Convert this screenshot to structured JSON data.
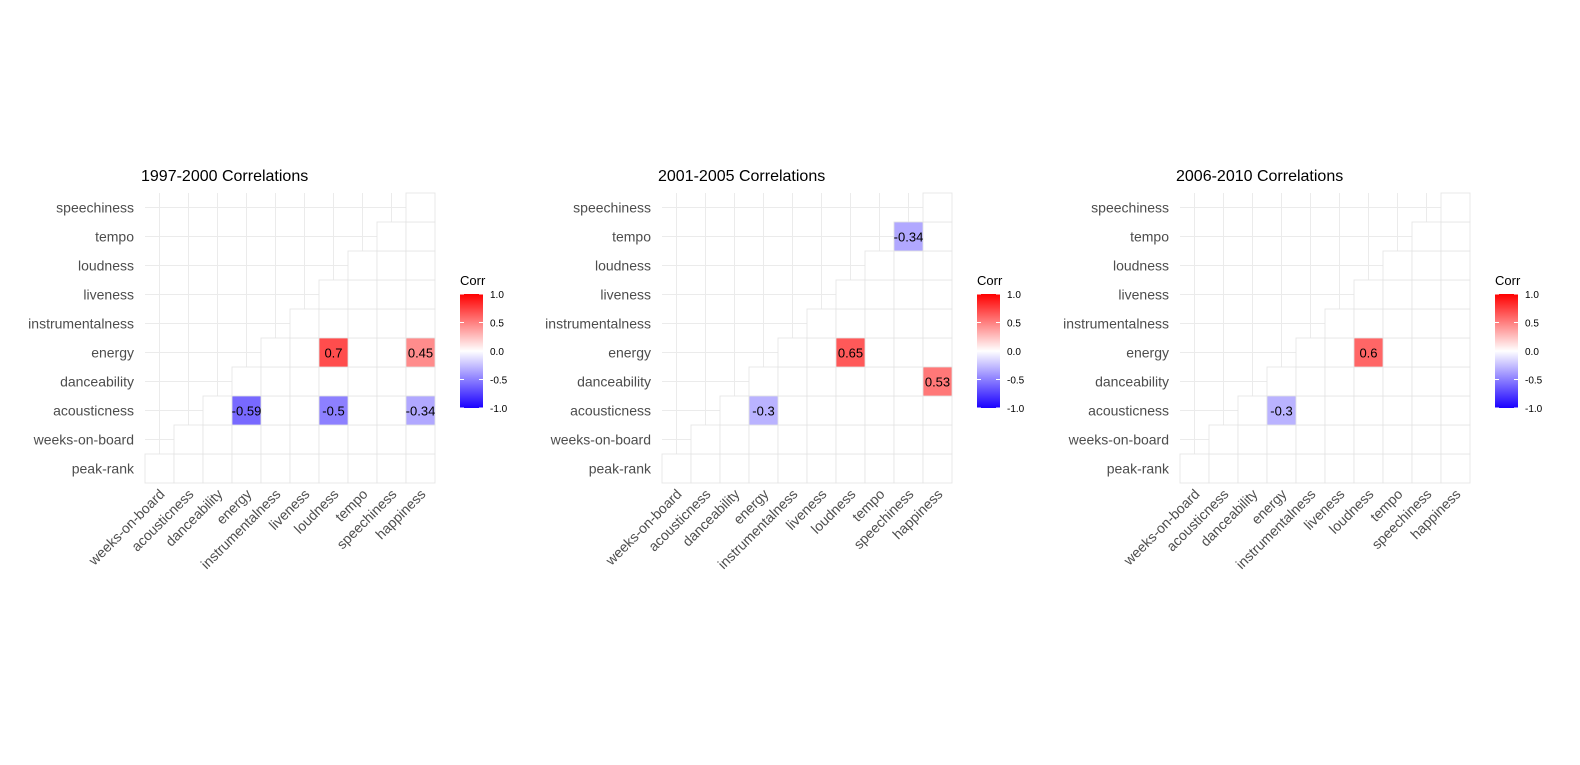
{
  "chart_data": [
    {
      "type": "heatmap",
      "title": "1997-2000 Correlations",
      "x_categories": [
        "weeks-on-board",
        "acousticness",
        "danceability",
        "energy",
        "instrumentalness",
        "liveness",
        "loudness",
        "tempo",
        "speechiness",
        "happiness"
      ],
      "y_categories": [
        "peak-rank",
        "weeks-on-board",
        "acousticness",
        "danceability",
        "energy",
        "instrumentalness",
        "liveness",
        "loudness",
        "tempo",
        "speechiness"
      ],
      "cells": [
        {
          "x": "energy",
          "y": "acousticness",
          "value": -0.59,
          "label": "-0.59"
        },
        {
          "x": "loudness",
          "y": "acousticness",
          "value": -0.5,
          "label": "-0.5"
        },
        {
          "x": "happiness",
          "y": "acousticness",
          "value": -0.34,
          "label": "-0.34"
        },
        {
          "x": "loudness",
          "y": "energy",
          "value": 0.7,
          "label": "0.7"
        },
        {
          "x": "happiness",
          "y": "energy",
          "value": 0.45,
          "label": "0.45"
        }
      ],
      "legend": {
        "title": "Corr",
        "ticks": [
          "1.0",
          "0.5",
          "0.0",
          "-0.5",
          "-1.0"
        ],
        "range": [
          -1,
          1
        ],
        "colors": {
          "low": "#1a00ff",
          "mid": "#ffffff",
          "high": "#ff0000"
        }
      }
    },
    {
      "type": "heatmap",
      "title": "2001-2005 Correlations",
      "x_categories": [
        "weeks-on-board",
        "acousticness",
        "danceability",
        "energy",
        "instrumentalness",
        "liveness",
        "loudness",
        "tempo",
        "speechiness",
        "happiness"
      ],
      "y_categories": [
        "peak-rank",
        "weeks-on-board",
        "acousticness",
        "danceability",
        "energy",
        "instrumentalness",
        "liveness",
        "loudness",
        "tempo",
        "speechiness"
      ],
      "cells": [
        {
          "x": "speechiness",
          "y": "tempo",
          "value": -0.34,
          "label": "-0.34"
        },
        {
          "x": "loudness",
          "y": "energy",
          "value": 0.65,
          "label": "0.65"
        },
        {
          "x": "happiness",
          "y": "danceability",
          "value": 0.53,
          "label": "0.53"
        },
        {
          "x": "energy",
          "y": "acousticness",
          "value": -0.3,
          "label": "-0.3"
        }
      ],
      "legend": {
        "title": "Corr",
        "ticks": [
          "1.0",
          "0.5",
          "0.0",
          "-0.5",
          "-1.0"
        ],
        "range": [
          -1,
          1
        ],
        "colors": {
          "low": "#1a00ff",
          "mid": "#ffffff",
          "high": "#ff0000"
        }
      }
    },
    {
      "type": "heatmap",
      "title": "2006-2010 Correlations",
      "x_categories": [
        "weeks-on-board",
        "acousticness",
        "danceability",
        "energy",
        "instrumentalness",
        "liveness",
        "loudness",
        "tempo",
        "speechiness",
        "happiness"
      ],
      "y_categories": [
        "peak-rank",
        "weeks-on-board",
        "acousticness",
        "danceability",
        "energy",
        "instrumentalness",
        "liveness",
        "loudness",
        "tempo",
        "speechiness"
      ],
      "cells": [
        {
          "x": "loudness",
          "y": "energy",
          "value": 0.6,
          "label": "0.6"
        },
        {
          "x": "energy",
          "y": "acousticness",
          "value": -0.3,
          "label": "-0.3"
        }
      ],
      "legend": {
        "title": "Corr",
        "ticks": [
          "1.0",
          "0.5",
          "0.0",
          "-0.5",
          "-1.0"
        ],
        "range": [
          -1,
          1
        ],
        "colors": {
          "low": "#1a00ff",
          "mid": "#ffffff",
          "high": "#ff0000"
        }
      }
    }
  ]
}
